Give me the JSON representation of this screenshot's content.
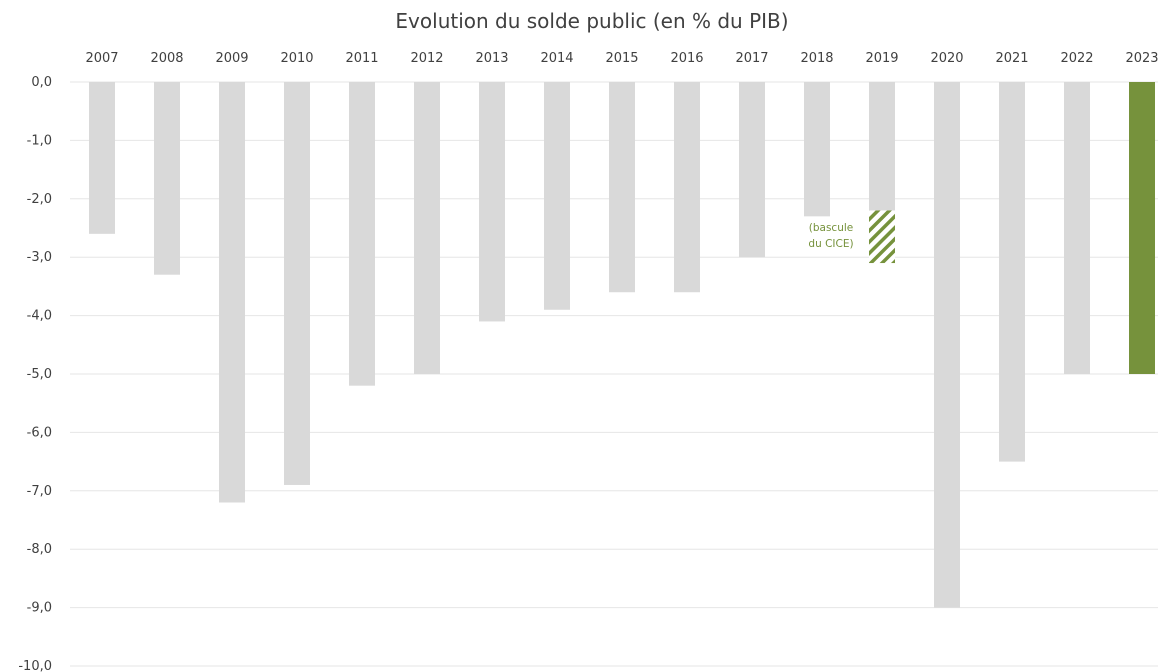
{
  "chart_data": {
    "type": "bar",
    "title": "Evolution du solde public (en % du PIB)",
    "xlabel": "",
    "ylabel": "",
    "categories": [
      "2007",
      "2008",
      "2009",
      "2010",
      "2011",
      "2012",
      "2013",
      "2014",
      "2015",
      "2016",
      "2017",
      "2018",
      "2019",
      "2020",
      "2021",
      "2022",
      "2023"
    ],
    "values": [
      -2.6,
      -3.3,
      -7.2,
      -6.9,
      -5.2,
      -5.0,
      -4.1,
      -3.9,
      -3.6,
      -3.6,
      -3.0,
      -2.3,
      -2.2,
      -9.0,
      -6.5,
      -5.0,
      -5.0
    ],
    "ylim": [
      -10,
      0
    ],
    "yticks": [
      "0,0",
      "-1,0",
      "-2,0",
      "-3,0",
      "-4,0",
      "-5,0",
      "-6,0",
      "-7,0",
      "-8,0",
      "-9,0",
      "-10,0"
    ],
    "grid": true,
    "x_axis_position": "top",
    "highlight": {
      "category": "2023",
      "color": "#76923c"
    },
    "hatched_extension": {
      "category": "2019",
      "from": -2.2,
      "to": -3.1,
      "color": "#76923c"
    },
    "annotation": {
      "lines": [
        "(bascule",
        "du CICE)"
      ],
      "category": "2018",
      "color": "#76923c"
    },
    "colors": {
      "bar": "#d9d9d9",
      "highlight": "#76923c",
      "text": "#404040",
      "grid": "#e6e6e6"
    }
  }
}
